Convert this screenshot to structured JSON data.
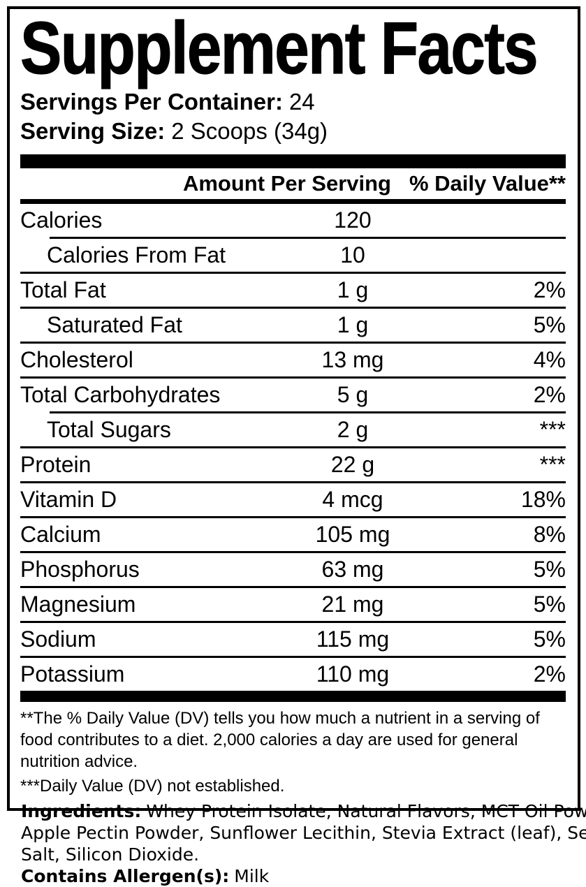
{
  "label": {
    "title": "Supplement Facts",
    "servings_per_container": {
      "label": "Servings Per Container:",
      "value": "24"
    },
    "serving_size": {
      "label": "Serving Size:",
      "value": "2 Scoops (34g)"
    },
    "columns": {
      "amount": "Amount Per Serving",
      "daily_value": "% Daily Value**"
    },
    "rows": [
      {
        "name": "Calories",
        "amount": "120",
        "dv": ""
      },
      {
        "name": "Calories From Fat",
        "amount": "10",
        "dv": ""
      },
      {
        "name": "Total Fat",
        "amount": "1 g",
        "dv": "2%"
      },
      {
        "name": "Saturated Fat",
        "amount": "1 g",
        "dv": "5%"
      },
      {
        "name": "Cholesterol",
        "amount": "13 mg",
        "dv": "4%"
      },
      {
        "name": "Total Carbohydrates",
        "amount": "5 g",
        "dv": "2%"
      },
      {
        "name": "Total Sugars",
        "amount": "2 g",
        "dv": "***"
      },
      {
        "name": "Protein",
        "amount": "22 g",
        "dv": "***"
      },
      {
        "name": "Vitamin D",
        "amount": "4 mcg",
        "dv": "18%"
      },
      {
        "name": "Calcium",
        "amount": "105 mg",
        "dv": "8%"
      },
      {
        "name": "Phosphorus",
        "amount": "63 mg",
        "dv": "5%"
      },
      {
        "name": "Magnesium",
        "amount": "21 mg",
        "dv": "5%"
      },
      {
        "name": "Sodium",
        "amount": "115 mg",
        "dv": "5%"
      },
      {
        "name": "Potassium",
        "amount": "110 mg",
        "dv": "2%"
      }
    ],
    "footnotes": [
      "**The % Daily Value (DV) tells you how much a nutrient in a serving of food contributes to a diet. 2,000 calories a day are used for general nutrition advice.",
      "***Daily Value (DV) not established."
    ]
  },
  "ingredients": {
    "label": "Ingredients:",
    "lines": [
      "Whey Protein Isolate, Natural Flavors, MCT Oil Powder,",
      "Apple Pectin Powder, Sunflower Lecithin, Stevia Extract (leaf), Sea",
      "Salt, Silicon Dioxide."
    ],
    "allergen_label": "Contains Allergen(s):",
    "allergen_value": "Milk"
  },
  "colors": {
    "ink": "#000000",
    "background": "#ffffff"
  }
}
